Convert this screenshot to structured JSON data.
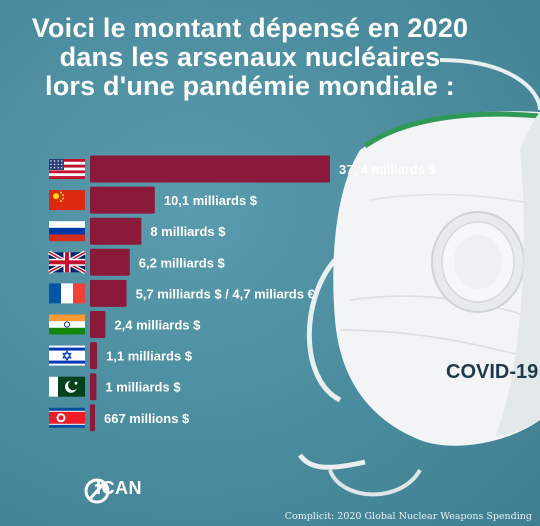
{
  "title_lines": [
    "Voici le montant dépensé en 2020",
    "dans les arsenaux nucléaires",
    "lors d'une pandémie mondiale :"
  ],
  "mask": {
    "label": "COVID-19"
  },
  "logo": {
    "text": "ICAN"
  },
  "credit": "Complicit: 2020 Global Nuclear Weapons Spending",
  "colors": {
    "bar": "#8b1a3a",
    "background": "#4f90a2",
    "label": "#ffffff"
  },
  "chart_data": {
    "type": "bar",
    "orientation": "horizontal",
    "title": "Voici le montant dépensé en 2020 dans les arsenaux nucléaires lors d'une pandémie mondiale :",
    "xlabel": "",
    "ylabel": "",
    "unit": "milliards $",
    "categories": [
      "united-states",
      "china",
      "russia",
      "united-kingdom",
      "france",
      "india",
      "israel",
      "pakistan",
      "north-korea"
    ],
    "values": [
      37.4,
      10.1,
      8.0,
      6.2,
      5.7,
      2.4,
      1.1,
      1.0,
      0.667
    ],
    "value_labels": [
      "37, 4 milliards $",
      "10,1 milliards $",
      "8 milliards $",
      "6,2 milliards $",
      "5,7 milliards $ / 4,7 miliards €",
      "2,4 milliards $",
      "1,1  milliards $",
      "1 milliards $",
      "667 millions $"
    ],
    "xlim": [
      0,
      37.4
    ],
    "grid": false,
    "legend": "none"
  }
}
